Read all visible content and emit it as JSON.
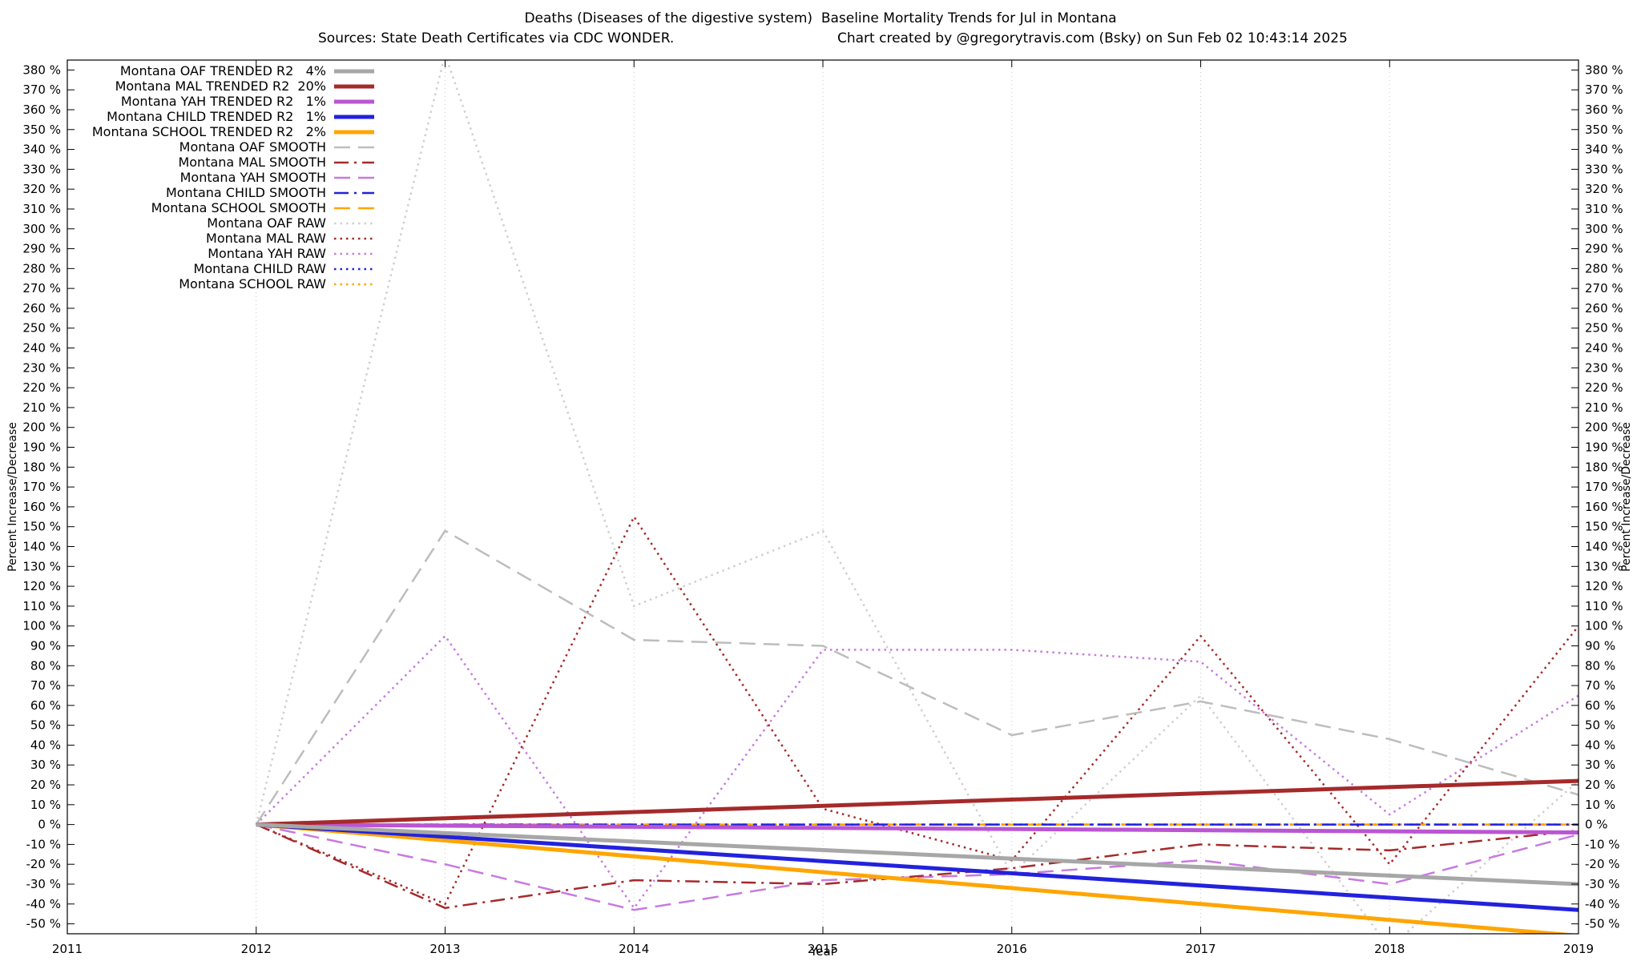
{
  "page": {
    "background": "#ffffff"
  },
  "chart_data": {
    "type": "line",
    "title": "Deaths (Diseases of the digestive system)  Baseline Mortality Trends for Jul in Montana",
    "subtitle_left": "Sources: State Death Certificates via CDC WONDER.",
    "subtitle_right": "Chart created by @gregorytravis.com (Bsky) on Sun Feb 02 10:43:14 2025",
    "xlabel": "Year",
    "ylabel_left": "Percent Increase/Decrease",
    "ylabel_right": "Percent Increase/Decrease",
    "xlim": [
      2011,
      2019
    ],
    "ylim": [
      -55,
      385
    ],
    "xticks": [
      2011,
      2012,
      2013,
      2014,
      2015,
      2016,
      2017,
      2018,
      2019
    ],
    "yticks": {
      "start": -50,
      "end": 380,
      "step": 10,
      "suffix": " %"
    },
    "grid": "vertical-dotted",
    "grid_color": "#c8c8c8",
    "axis_color": "#000000",
    "legend_position": "top-left",
    "series": [
      {
        "name": "Montana OAF TRENDED R2   4%",
        "color": "#a7a7a7",
        "style": "solid",
        "width": 5,
        "points": [
          [
            2012,
            0
          ],
          [
            2019,
            -30
          ]
        ]
      },
      {
        "name": "Montana MAL TRENDED R2  20%",
        "color": "#a52a2a",
        "style": "solid",
        "width": 5,
        "points": [
          [
            2012,
            0
          ],
          [
            2019,
            22
          ]
        ]
      },
      {
        "name": "Montana YAH TRENDED R2   1%",
        "color": "#ba55d3",
        "style": "solid",
        "width": 5,
        "points": [
          [
            2012,
            0
          ],
          [
            2019,
            -4
          ]
        ]
      },
      {
        "name": "Montana CHILD TRENDED R2   1%",
        "color": "#2222dd",
        "style": "solid",
        "width": 5,
        "points": [
          [
            2012,
            0
          ],
          [
            2019,
            -43
          ]
        ]
      },
      {
        "name": "Montana SCHOOL TRENDED R2   2%",
        "color": "#ffa500",
        "style": "solid",
        "width": 5,
        "points": [
          [
            2012,
            0
          ],
          [
            2019,
            -56
          ]
        ]
      },
      {
        "name": "Montana OAF SMOOTH",
        "color": "#bdbdbd",
        "style": "dashed",
        "width": 2.5,
        "points": [
          [
            2012,
            0
          ],
          [
            2013,
            148
          ],
          [
            2014,
            93
          ],
          [
            2015,
            90
          ],
          [
            2016,
            45
          ],
          [
            2017,
            62
          ],
          [
            2018,
            43
          ],
          [
            2019,
            15
          ]
        ]
      },
      {
        "name": "Montana MAL SMOOTH",
        "color": "#a52a2a",
        "style": "dashdot",
        "width": 2.5,
        "points": [
          [
            2012,
            0
          ],
          [
            2013,
            -42
          ],
          [
            2014,
            -28
          ],
          [
            2015,
            -30
          ],
          [
            2016,
            -22
          ],
          [
            2017,
            -10
          ],
          [
            2018,
            -13
          ],
          [
            2019,
            -3
          ]
        ]
      },
      {
        "name": "Montana YAH SMOOTH",
        "color": "#c77ae0",
        "style": "dashed",
        "width": 2.5,
        "points": [
          [
            2012,
            0
          ],
          [
            2013,
            -20
          ],
          [
            2014,
            -43
          ],
          [
            2015,
            -28
          ],
          [
            2016,
            -25
          ],
          [
            2017,
            -18
          ],
          [
            2018,
            -30
          ],
          [
            2019,
            -5
          ]
        ]
      },
      {
        "name": "Montana CHILD SMOOTH",
        "color": "#2222dd",
        "style": "dashdot",
        "width": 2.5,
        "points": [
          [
            2012,
            0
          ],
          [
            2013,
            0
          ],
          [
            2014,
            0
          ],
          [
            2015,
            0
          ],
          [
            2016,
            0
          ],
          [
            2017,
            0
          ],
          [
            2018,
            0
          ],
          [
            2019,
            0
          ]
        ]
      },
      {
        "name": "Montana SCHOOL SMOOTH",
        "color": "#ffa500",
        "style": "dashed",
        "width": 2.5,
        "points": [
          [
            2012,
            0
          ],
          [
            2013,
            0
          ],
          [
            2014,
            0
          ],
          [
            2015,
            0
          ],
          [
            2016,
            0
          ],
          [
            2017,
            0
          ],
          [
            2018,
            0
          ],
          [
            2019,
            0
          ]
        ]
      },
      {
        "name": "Montana OAF RAW",
        "color": "#d0d0d0",
        "style": "dotted",
        "width": 2.5,
        "points": [
          [
            2012,
            0
          ],
          [
            2013,
            388
          ],
          [
            2014,
            110
          ],
          [
            2015,
            148
          ],
          [
            2016,
            -25
          ],
          [
            2017,
            65
          ],
          [
            2018,
            -62
          ],
          [
            2019,
            22
          ]
        ]
      },
      {
        "name": "Montana MAL RAW",
        "color": "#a52a2a",
        "style": "dotted",
        "width": 2.5,
        "points": [
          [
            2012,
            0
          ],
          [
            2013,
            -40
          ],
          [
            2014,
            155
          ],
          [
            2015,
            8
          ],
          [
            2016,
            -18
          ],
          [
            2017,
            95
          ],
          [
            2018,
            -20
          ],
          [
            2019,
            100
          ]
        ]
      },
      {
        "name": "Montana YAH RAW",
        "color": "#c77ae0",
        "style": "dotted",
        "width": 2.5,
        "points": [
          [
            2012,
            0
          ],
          [
            2013,
            95
          ],
          [
            2014,
            -42
          ],
          [
            2015,
            88
          ],
          [
            2016,
            88
          ],
          [
            2017,
            82
          ],
          [
            2018,
            5
          ],
          [
            2019,
            65
          ]
        ]
      },
      {
        "name": "Montana CHILD RAW",
        "color": "#2222dd",
        "style": "dotted",
        "width": 2.5,
        "points": [
          [
            2012,
            0
          ],
          [
            2013,
            0
          ],
          [
            2014,
            0
          ],
          [
            2015,
            0
          ],
          [
            2016,
            0
          ],
          [
            2017,
            0
          ],
          [
            2018,
            0
          ],
          [
            2019,
            0
          ]
        ]
      },
      {
        "name": "Montana SCHOOL RAW",
        "color": "#ffa500",
        "style": "dotted",
        "width": 2.5,
        "points": [
          [
            2012,
            0
          ],
          [
            2013,
            0
          ],
          [
            2014,
            0
          ],
          [
            2015,
            0
          ],
          [
            2016,
            0
          ],
          [
            2017,
            0
          ],
          [
            2018,
            0
          ],
          [
            2019,
            0
          ]
        ]
      }
    ]
  }
}
